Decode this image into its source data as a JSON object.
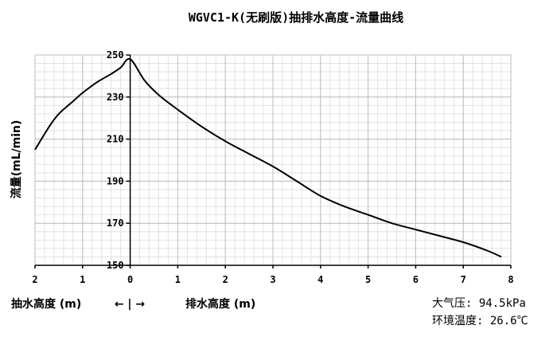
{
  "chart_data": {
    "type": "line",
    "title": "WGVC1-K(无刷版)抽排水高度-流量曲线",
    "ylabel": "流量(mL/min)",
    "xlabel_left": "抽水高度 (m)",
    "xlabel_arrows": "← | →",
    "xlabel_right": "排水高度 (m)",
    "x_axis": {
      "range": [
        -2,
        8
      ],
      "ticks": [
        -2,
        -1,
        0,
        1,
        2,
        3,
        4,
        5,
        6,
        7,
        8
      ],
      "tick_labels": [
        "2",
        "1",
        "0",
        "1",
        "2",
        "3",
        "4",
        "5",
        "6",
        "7",
        "8"
      ]
    },
    "y_axis": {
      "range": [
        150,
        250
      ],
      "ticks": [
        150,
        170,
        190,
        210,
        230,
        250
      ],
      "tick_labels": [
        "150",
        "170",
        "190",
        "210",
        "230",
        "250"
      ]
    },
    "grid": true,
    "series": [
      {
        "x": [
          -2,
          -1.7,
          -1.5,
          -1.2,
          -1,
          -0.7,
          -0.4,
          -0.2,
          0,
          0.3,
          0.6,
          1,
          1.5,
          2,
          2.5,
          3,
          3.5,
          4,
          4.5,
          5,
          5.5,
          6,
          6.5,
          7,
          7.5,
          7.8
        ],
        "y": [
          205,
          216,
          222,
          228,
          232,
          237,
          241,
          244,
          248,
          238,
          231,
          224,
          216,
          209,
          203,
          197,
          190,
          183,
          178,
          174,
          170,
          167,
          164,
          161,
          157,
          154
        ],
        "color": "#000000"
      }
    ]
  },
  "conditions": {
    "pressure": "大气压: 94.5kPa",
    "temperature": "环境温度: 26.6℃"
  }
}
